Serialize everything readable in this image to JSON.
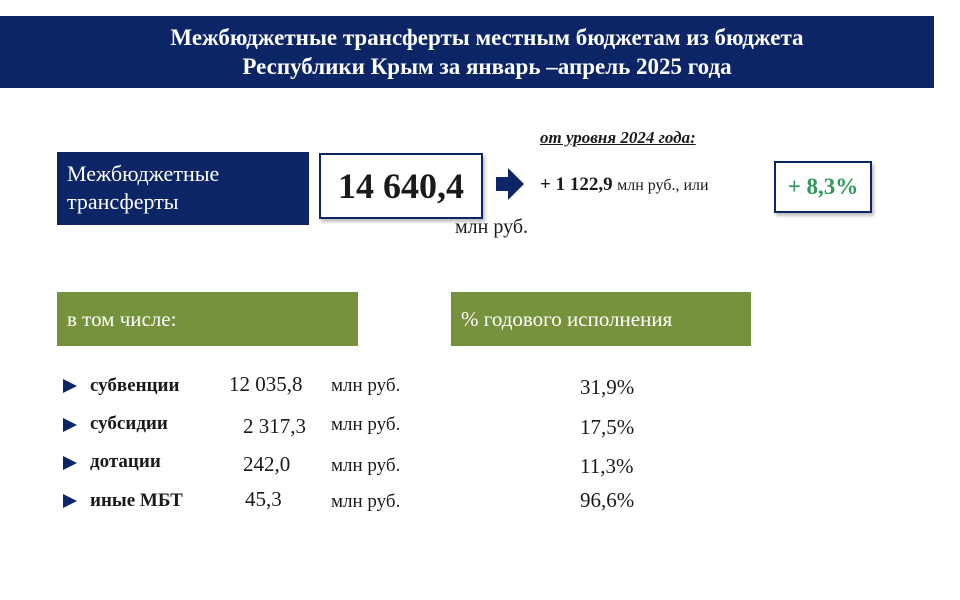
{
  "header": {
    "title_line1": "Межбюджетные трансферты местным бюджетам из бюджета",
    "title_line2": "Республики Крым за январь –апрель  2025 года"
  },
  "summary": {
    "label": "Межбюджетные трансферты",
    "total": "14 640,4",
    "total_unit": "млн руб.",
    "compare_caption": "от уровня 2024 года:",
    "delta_value": "+ 1 122,9",
    "delta_unit": "млн руб., или",
    "delta_percent": "+ 8,3%"
  },
  "sections": {
    "including_label": "в том числе:",
    "annual_label": "% годового исполнения"
  },
  "rows": [
    {
      "name": "субвенции",
      "value": "12 035,8",
      "unit": "млн руб.",
      "percent": "31,9%"
    },
    {
      "name": "субсидии",
      "value": "2 317,3",
      "unit": "млн руб.",
      "percent": "17,5%"
    },
    {
      "name": "дотации",
      "value": "242,0",
      "unit": "млн руб.",
      "percent": "11,3%"
    },
    {
      "name": "иные МБТ",
      "value": "45,3",
      "unit": "млн руб.",
      "percent": "96,6%"
    }
  ],
  "colors": {
    "navy": "#0c2566",
    "olive_green": "#77923c",
    "growth_green": "#2e9a57"
  }
}
